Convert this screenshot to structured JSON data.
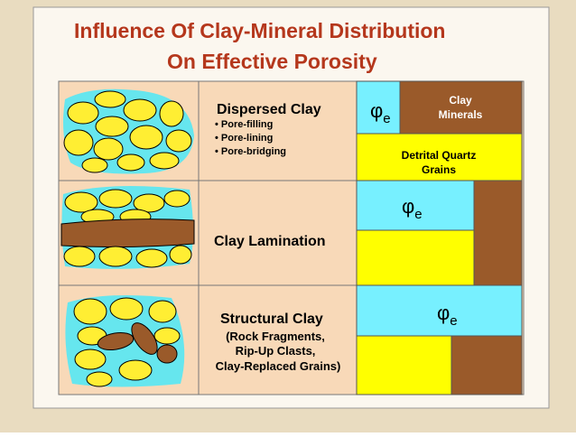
{
  "header": {
    "title_line1": "Influence Of Clay-Mineral Distribution",
    "title_line2": "On Effective Porosity"
  },
  "rows": [
    {
      "label": "Dispersed Clay",
      "bullets": [
        "Pore-filling",
        "Pore-lining",
        "Pore-bridging"
      ],
      "porosity_symbol": "φ",
      "porosity_subscript": "e",
      "clay_label": "Clay Minerals",
      "quartz_label": "Detrital Quartz Grains"
    },
    {
      "label": "Clay Lamination",
      "porosity_symbol": "φ",
      "porosity_subscript": "e"
    },
    {
      "label": "Structural Clay",
      "details": [
        "(Rock Fragments,",
        "Rip-Up Clasts,",
        "Clay-Replaced Grains)"
      ],
      "porosity_symbol": "φ",
      "porosity_subscript": "e"
    }
  ]
}
